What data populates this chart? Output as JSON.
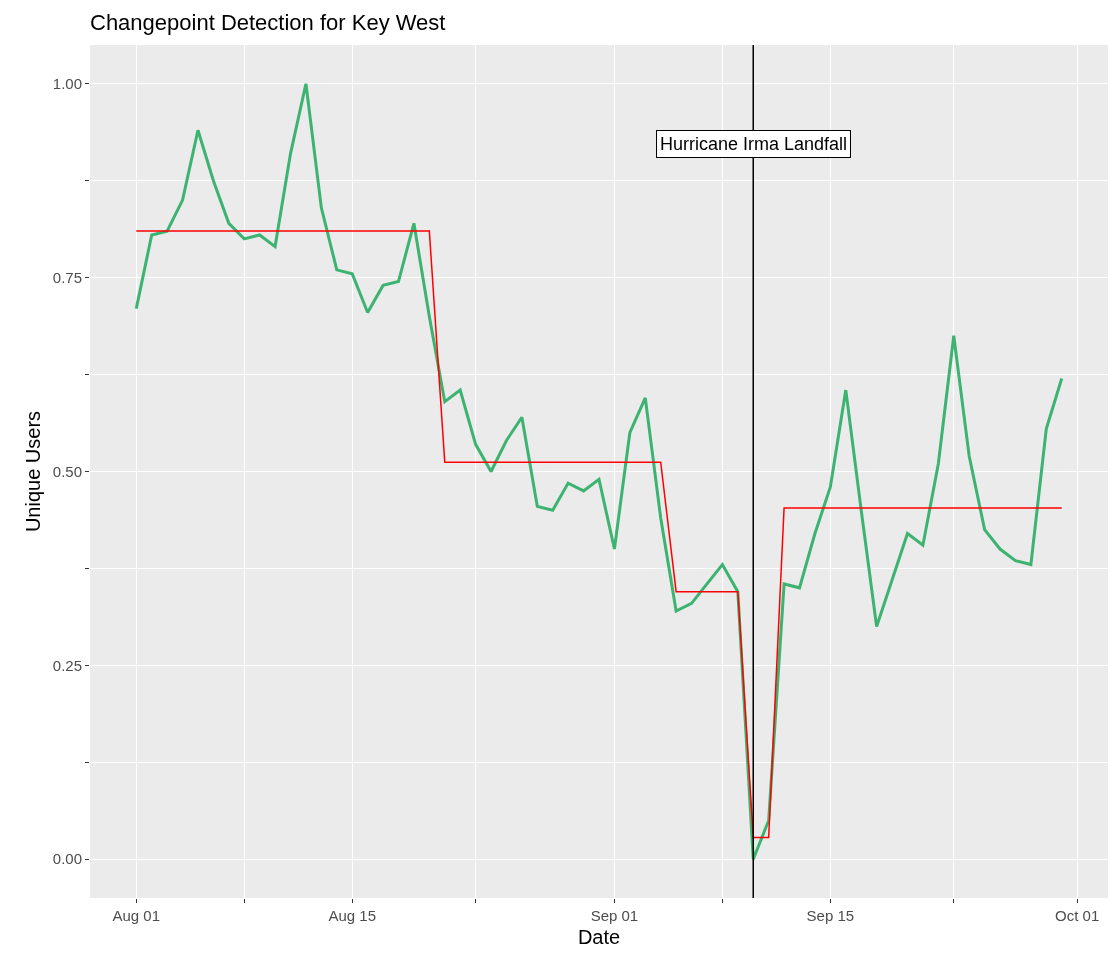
{
  "chart_data": {
    "type": "line",
    "title": "Changepoint Detection for Key West",
    "xlabel": "Date",
    "ylabel": "Unique Users",
    "x": [
      "--08-01",
      "--08-02",
      "--08-03",
      "--08-04",
      "--08-05",
      "--08-06",
      "--08-07",
      "--08-08",
      "--08-09",
      "--08-10",
      "--08-11",
      "--08-12",
      "--08-13",
      "--08-14",
      "--08-15",
      "--08-16",
      "--08-17",
      "--08-18",
      "--08-19",
      "--08-20",
      "--08-21",
      "--08-22",
      "--08-23",
      "--08-24",
      "--08-25",
      "--08-26",
      "--08-27",
      "--08-28",
      "--08-29",
      "--08-30",
      "--08-31",
      "--09-01",
      "--09-02",
      "--09-03",
      "--09-04",
      "--09-05",
      "--09-06",
      "--09-07",
      "--09-08",
      "--09-09",
      "--09-10",
      "--09-11",
      "--09-12",
      "--09-13",
      "--09-14",
      "--09-15",
      "--09-16",
      "--09-17",
      "--09-18",
      "--09-19",
      "--09-20",
      "--09-21",
      "--09-22",
      "--09-23",
      "--09-24",
      "--09-25",
      "--09-26",
      "--09-27",
      "--09-28",
      "--09-29",
      "--09-30"
    ],
    "series": [
      {
        "color": "#3cb371",
        "values": [
          0.71,
          0.805,
          0.81,
          0.85,
          0.94,
          0.875,
          0.82,
          0.8,
          0.805,
          0.79,
          0.91,
          1.0,
          0.84,
          0.76,
          0.755,
          0.705,
          0.74,
          0.745,
          0.82,
          0.7,
          0.59,
          0.605,
          0.535,
          0.5,
          0.54,
          0.57,
          0.455,
          0.45,
          0.485,
          0.475,
          0.49,
          0.4,
          0.55,
          0.595,
          0.44,
          0.32,
          0.33,
          0.355,
          0.38,
          0.345,
          0.0,
          0.05,
          0.355,
          0.35,
          0.42,
          0.48,
          0.605,
          0.45,
          0.3,
          0.36,
          0.42,
          0.405,
          0.51,
          0.675,
          0.52,
          0.425,
          0.4,
          0.385,
          0.38,
          0.555,
          0.62
        ]
      },
      {
        "color": "#ff0000",
        "values": [
          0.81,
          0.81,
          0.81,
          0.81,
          0.81,
          0.81,
          0.81,
          0.81,
          0.81,
          0.81,
          0.81,
          0.81,
          0.81,
          0.81,
          0.81,
          0.81,
          0.81,
          0.81,
          0.81,
          0.81,
          0.512,
          0.512,
          0.512,
          0.512,
          0.512,
          0.512,
          0.512,
          0.512,
          0.512,
          0.512,
          0.512,
          0.512,
          0.512,
          0.512,
          0.512,
          0.345,
          0.345,
          0.345,
          0.345,
          0.345,
          0.028,
          0.028,
          0.453,
          0.453,
          0.453,
          0.453,
          0.453,
          0.453,
          0.453,
          0.453,
          0.453,
          0.453,
          0.453,
          0.453,
          0.453,
          0.453,
          0.453,
          0.453,
          0.453,
          0.453,
          0.453
        ]
      }
    ],
    "xlim": [
      "--07-29",
      "--10-03"
    ],
    "xticks": [
      {
        "value": "--08-01",
        "label": "Aug 01"
      },
      {
        "value": "--08-08",
        "label": null
      },
      {
        "value": "--08-15",
        "label": "Aug 15"
      },
      {
        "value": "--08-23",
        "label": null
      },
      {
        "value": "--09-01",
        "label": "Sep 01"
      },
      {
        "value": "--09-08",
        "label": null
      },
      {
        "value": "--09-15",
        "label": "Sep 15"
      },
      {
        "value": "--09-23",
        "label": null
      },
      {
        "value": "--10-01",
        "label": "Oct 01"
      }
    ],
    "ylim": [
      -0.05,
      1.05
    ],
    "yticks": [
      {
        "value": 0,
        "label": "0.00"
      },
      {
        "value": 0.125,
        "label": null
      },
      {
        "value": 0.25,
        "label": "0.25"
      },
      {
        "value": 0.375,
        "label": null
      },
      {
        "value": 0.5,
        "label": "0.50"
      },
      {
        "value": 0.625,
        "label": null
      },
      {
        "value": 0.75,
        "label": "0.75"
      },
      {
        "value": 0.875,
        "label": null
      },
      {
        "value": 1,
        "label": "1.00"
      }
    ],
    "ref_lines": [
      {
        "axis": "x",
        "value": "--09-10",
        "label": "Hurricane Irma Landfall",
        "color": "#000000"
      }
    ],
    "grid": true,
    "marker": "none",
    "line_style": "solid"
  }
}
